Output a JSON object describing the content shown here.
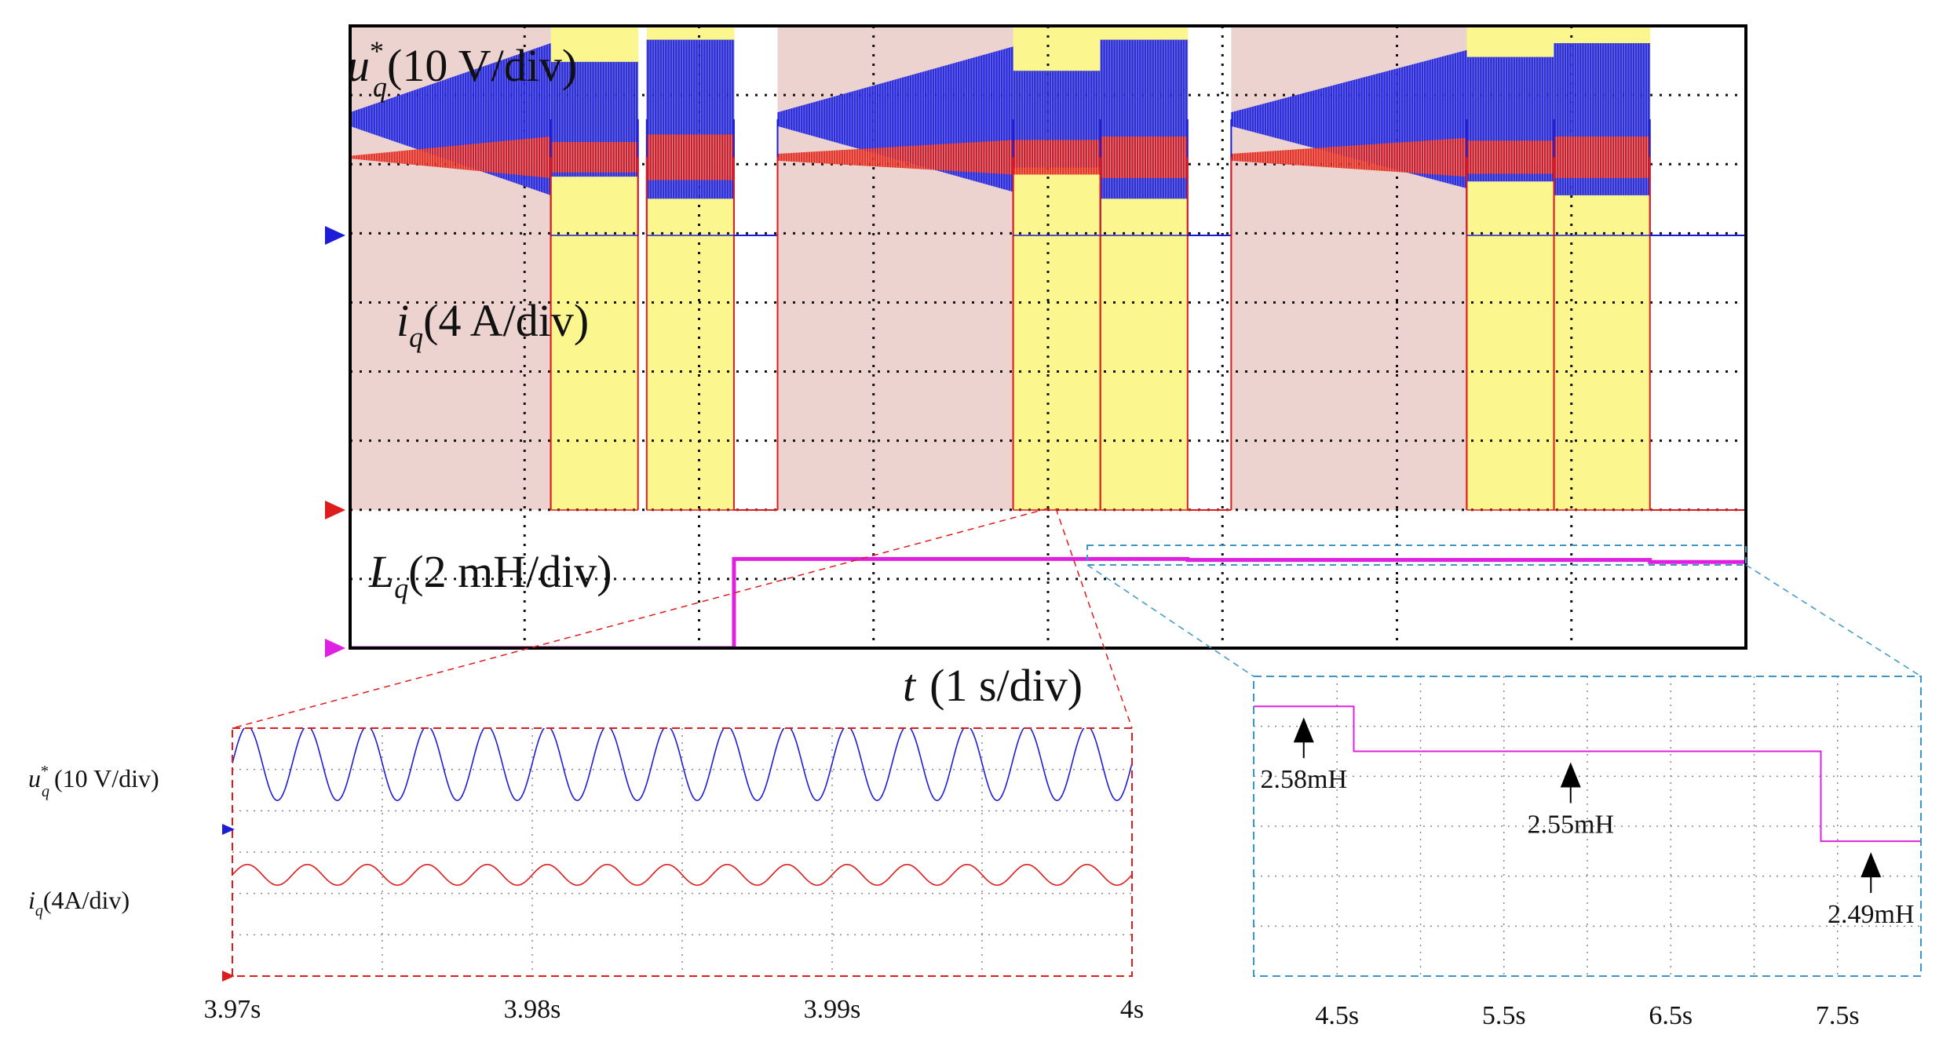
{
  "chart_data": [
    {
      "id": "main",
      "type": "line",
      "title": "",
      "xlabel": "1 s/div",
      "xlabel_var": "t",
      "x_divisions": 8,
      "y_divisions": 9,
      "grid": true,
      "colors": {
        "uq": "#1d1dd8",
        "iq": "#e01b1b",
        "lq": "#e020e0",
        "pink_region": "#ecd3d0",
        "yellow_region": "#fbf78e",
        "grid": "#111111"
      },
      "series": [
        {
          "name": "uq*",
          "label_main": "u",
          "label_sub": "q",
          "label_sup": "*",
          "label_unit": "(10 V/div)",
          "color": "#1d1dd8"
        },
        {
          "name": "iq",
          "label_main": "i",
          "label_sub": "q",
          "label_unit": "(4 A/div)",
          "color": "#e01b1b"
        },
        {
          "name": "Lq",
          "label_main": "L",
          "label_sub": "q",
          "label_unit": "(2 mH/div)",
          "color": "#e020e0"
        }
      ],
      "segments": [
        {
          "kind": "ramp",
          "x0": 0.0,
          "x1": 1.15,
          "u_half": [
            0.1,
            1.1
          ],
          "i_half": [
            0.02,
            0.3
          ],
          "region": "pink"
        },
        {
          "kind": "block",
          "x0": 1.15,
          "x1": 1.65,
          "u_half": 0.83,
          "i_half": 0.22,
          "region": "yellow"
        },
        {
          "kind": "block",
          "x0": 1.7,
          "x1": 2.2,
          "u_half": 1.15,
          "i_half": 0.33,
          "region": "yellow"
        },
        {
          "kind": "zero",
          "x0": 2.2,
          "x1": 2.45,
          "region": "none"
        },
        {
          "kind": "ramp",
          "x0": 2.45,
          "x1": 3.8,
          "u_half": [
            0.1,
            1.05
          ],
          "i_half": [
            0.05,
            0.25
          ],
          "region": "pink"
        },
        {
          "kind": "block",
          "x0": 3.8,
          "x1": 4.3,
          "u_half": 0.7,
          "i_half": 0.25,
          "region": "yellow"
        },
        {
          "kind": "block",
          "x0": 4.3,
          "x1": 4.8,
          "u_half": 1.15,
          "i_half": 0.3,
          "region": "yellow"
        },
        {
          "kind": "zero",
          "x0": 4.8,
          "x1": 5.05,
          "region": "none"
        },
        {
          "kind": "ramp",
          "x0": 5.05,
          "x1": 6.4,
          "u_half": [
            0.1,
            1.0
          ],
          "i_half": [
            0.05,
            0.28
          ],
          "region": "pink"
        },
        {
          "kind": "block",
          "x0": 6.4,
          "x1": 6.9,
          "u_half": 0.9,
          "i_half": 0.24,
          "region": "yellow"
        },
        {
          "kind": "block",
          "x0": 6.9,
          "x1": 7.45,
          "u_half": 1.1,
          "i_half": 0.3,
          "region": "yellow"
        },
        {
          "kind": "zero",
          "x0": 7.45,
          "x1": 8.0,
          "region": "none"
        }
      ],
      "u_center_div": 1.35,
      "i_center_div": 1.9,
      "lq_steps": [
        {
          "x0": 0.0,
          "x1": 2.2,
          "value_mH": 0
        },
        {
          "x0": 2.2,
          "x1": 4.8,
          "value_mH": 2.58
        },
        {
          "x0": 4.8,
          "x1": 7.45,
          "value_mH": 2.55
        },
        {
          "x0": 7.45,
          "x1": 8.0,
          "value_mH": 2.49
        }
      ]
    },
    {
      "id": "zoom_left",
      "type": "line",
      "x_range": [
        3.97,
        4.0
      ],
      "x_ticks": [
        "3.97s",
        "3.98s",
        "3.99s",
        "4s"
      ],
      "x_tick_values": [
        3.97,
        3.98,
        3.99,
        4.0
      ],
      "y_divisions": 6,
      "grid": true,
      "series": [
        {
          "name": "uq*",
          "label_main": "u",
          "label_sub": "q",
          "label_sup": "*",
          "label_unit": "(10 V/div)",
          "color": "#1d1dd8",
          "cycles": 15,
          "amplitude_div": 0.9
        },
        {
          "name": "iq",
          "label_main": "i",
          "label_sub": "q",
          "label_unit": "(4A/div)",
          "color": "#e01b1b",
          "cycles": 15,
          "amplitude_div": 0.25
        }
      ]
    },
    {
      "id": "zoom_right",
      "type": "line",
      "x_range": [
        4.0,
        8.0
      ],
      "x_ticks": [
        "4.5s",
        "5.5s",
        "6.5s",
        "7.5s"
      ],
      "x_tick_values": [
        4.5,
        5.5,
        6.5,
        7.5
      ],
      "y_range_mH": [
        2.4,
        2.6
      ],
      "y_divisions": 6,
      "grid": true,
      "series": [
        {
          "name": "Lq",
          "color": "#e020e0",
          "steps": [
            {
              "x0": 4.0,
              "x1": 4.6,
              "value_mH": 2.58
            },
            {
              "x0": 4.6,
              "x1": 7.4,
              "value_mH": 2.55
            },
            {
              "x0": 7.4,
              "x1": 8.0,
              "value_mH": 2.49
            }
          ]
        }
      ],
      "annotations": [
        {
          "text": "2.58mH",
          "x": 4.3,
          "value_mH": 2.58
        },
        {
          "text": "2.55mH",
          "x": 5.9,
          "value_mH": 2.55
        },
        {
          "text": "2.49mH",
          "x": 7.7,
          "value_mH": 2.49
        }
      ]
    }
  ]
}
